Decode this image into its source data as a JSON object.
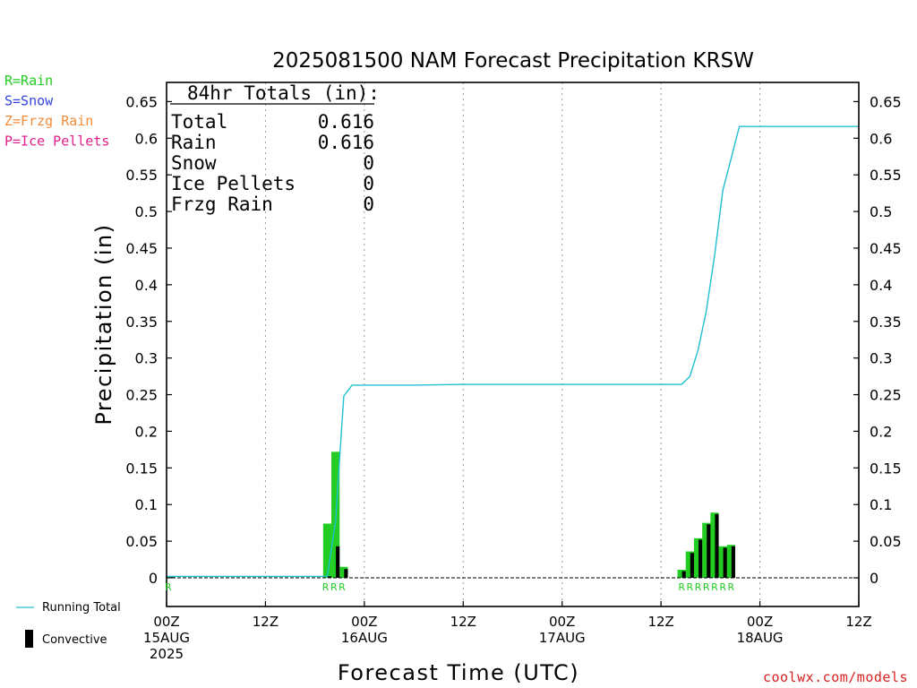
{
  "legend_types": [
    {
      "label": "R=Rain",
      "color": "#22cc22"
    },
    {
      "label": "S=Snow",
      "color": "#3344dd"
    },
    {
      "label": "Z=Frzg Rain",
      "color": "#f08c3c"
    },
    {
      "label": "P=Ice Pellets",
      "color": "#e0208a"
    }
  ],
  "legend_series": {
    "running_total_label": "Running Total",
    "running_total_color": "#20c0d0",
    "convective_label": "Convective",
    "convective_color": "#000000"
  },
  "footer_brand": "coolwx.com/models",
  "footer_brand_color": "#d82020",
  "totals": {
    "header": "84hr Totals (in):",
    "rows": [
      {
        "label": "Total",
        "value": "0.616"
      },
      {
        "label": "Rain",
        "value": "0.616"
      },
      {
        "label": "Snow",
        "value": "0"
      },
      {
        "label": "Ice Pellets",
        "value": "0"
      },
      {
        "label": "Frzg Rain",
        "value": "0"
      }
    ]
  },
  "chart_data": {
    "type": "bar",
    "title": "2025081500 NAM Forecast Precipitation KRSW",
    "xlabel": "Forecast Time (UTC)",
    "ylabel": "Precipitation (in)",
    "xlim_hours": [
      0,
      84
    ],
    "ylim": [
      0,
      0.675
    ],
    "y_ticks": [
      "0",
      "0.05",
      "0.1",
      "0.15",
      "0.2",
      "0.25",
      "0.3",
      "0.35",
      "0.4",
      "0.45",
      "0.5",
      "0.55",
      "0.6",
      "0.65"
    ],
    "y_tick_values": [
      0,
      0.05,
      0.1,
      0.15,
      0.2,
      0.25,
      0.3,
      0.35,
      0.4,
      0.45,
      0.5,
      0.55,
      0.6,
      0.65
    ],
    "x_ticks": [
      {
        "hour": 0,
        "lines": [
          "00Z",
          "15AUG",
          "2025"
        ]
      },
      {
        "hour": 12,
        "lines": [
          "12Z"
        ]
      },
      {
        "hour": 24,
        "lines": [
          "00Z",
          "16AUG"
        ]
      },
      {
        "hour": 36,
        "lines": [
          "12Z"
        ]
      },
      {
        "hour": 48,
        "lines": [
          "00Z",
          "17AUG"
        ]
      },
      {
        "hour": 60,
        "lines": [
          "12Z"
        ]
      },
      {
        "hour": 72,
        "lines": [
          "00Z",
          "18AUG"
        ]
      },
      {
        "hour": 84,
        "lines": [
          "12Z"
        ]
      }
    ],
    "grid_x_hours": [
      12,
      24,
      36,
      48,
      60,
      72
    ],
    "grid": "vertical dotted",
    "bar_width_hours": 1,
    "precip_bars": [
      {
        "hour": 1,
        "total": 0.001,
        "convective": 0.001,
        "type": "R"
      },
      {
        "hour": 20,
        "total": 0.074,
        "convective": 0.002,
        "type": "R"
      },
      {
        "hour": 21,
        "total": 0.172,
        "convective": 0.043,
        "type": "R"
      },
      {
        "hour": 22,
        "total": 0.015,
        "convective": 0.012,
        "type": "R"
      },
      {
        "hour": 63,
        "total": 0.011,
        "convective": 0.009,
        "type": "R"
      },
      {
        "hour": 64,
        "total": 0.036,
        "convective": 0.034,
        "type": "R"
      },
      {
        "hour": 65,
        "total": 0.054,
        "convective": 0.052,
        "type": "R"
      },
      {
        "hour": 66,
        "total": 0.075,
        "convective": 0.073,
        "type": "R"
      },
      {
        "hour": 67,
        "total": 0.089,
        "convective": 0.087,
        "type": "R"
      },
      {
        "hour": 68,
        "total": 0.043,
        "convective": 0.041,
        "type": "R"
      },
      {
        "hour": 69,
        "total": 0.045,
        "convective": 0.043,
        "type": "R"
      }
    ],
    "type_markers": [
      {
        "hour": 0.7,
        "label": "R"
      },
      {
        "hour": 19.8,
        "label": "R"
      },
      {
        "hour": 20.8,
        "label": "R"
      },
      {
        "hour": 21.8,
        "label": "R"
      },
      {
        "hour": 63,
        "label": "R"
      },
      {
        "hour": 64,
        "label": "R"
      },
      {
        "hour": 65,
        "label": "R"
      },
      {
        "hour": 66,
        "label": "R"
      },
      {
        "hour": 67,
        "label": "R"
      },
      {
        "hour": 68,
        "label": "R"
      },
      {
        "hour": 69,
        "label": "R"
      }
    ],
    "running_total": {
      "x_hours": [
        0,
        1,
        19.5,
        20.5,
        21.5,
        22.5,
        24,
        30,
        36,
        48,
        60,
        62.5,
        63.5,
        64.5,
        65.5,
        66.5,
        67.5,
        68.5,
        69.5,
        84
      ],
      "y": [
        0.002,
        0.002,
        0.002,
        0.076,
        0.248,
        0.263,
        0.263,
        0.263,
        0.264,
        0.264,
        0.264,
        0.264,
        0.275,
        0.311,
        0.365,
        0.44,
        0.529,
        0.572,
        0.616,
        0.616
      ]
    }
  }
}
